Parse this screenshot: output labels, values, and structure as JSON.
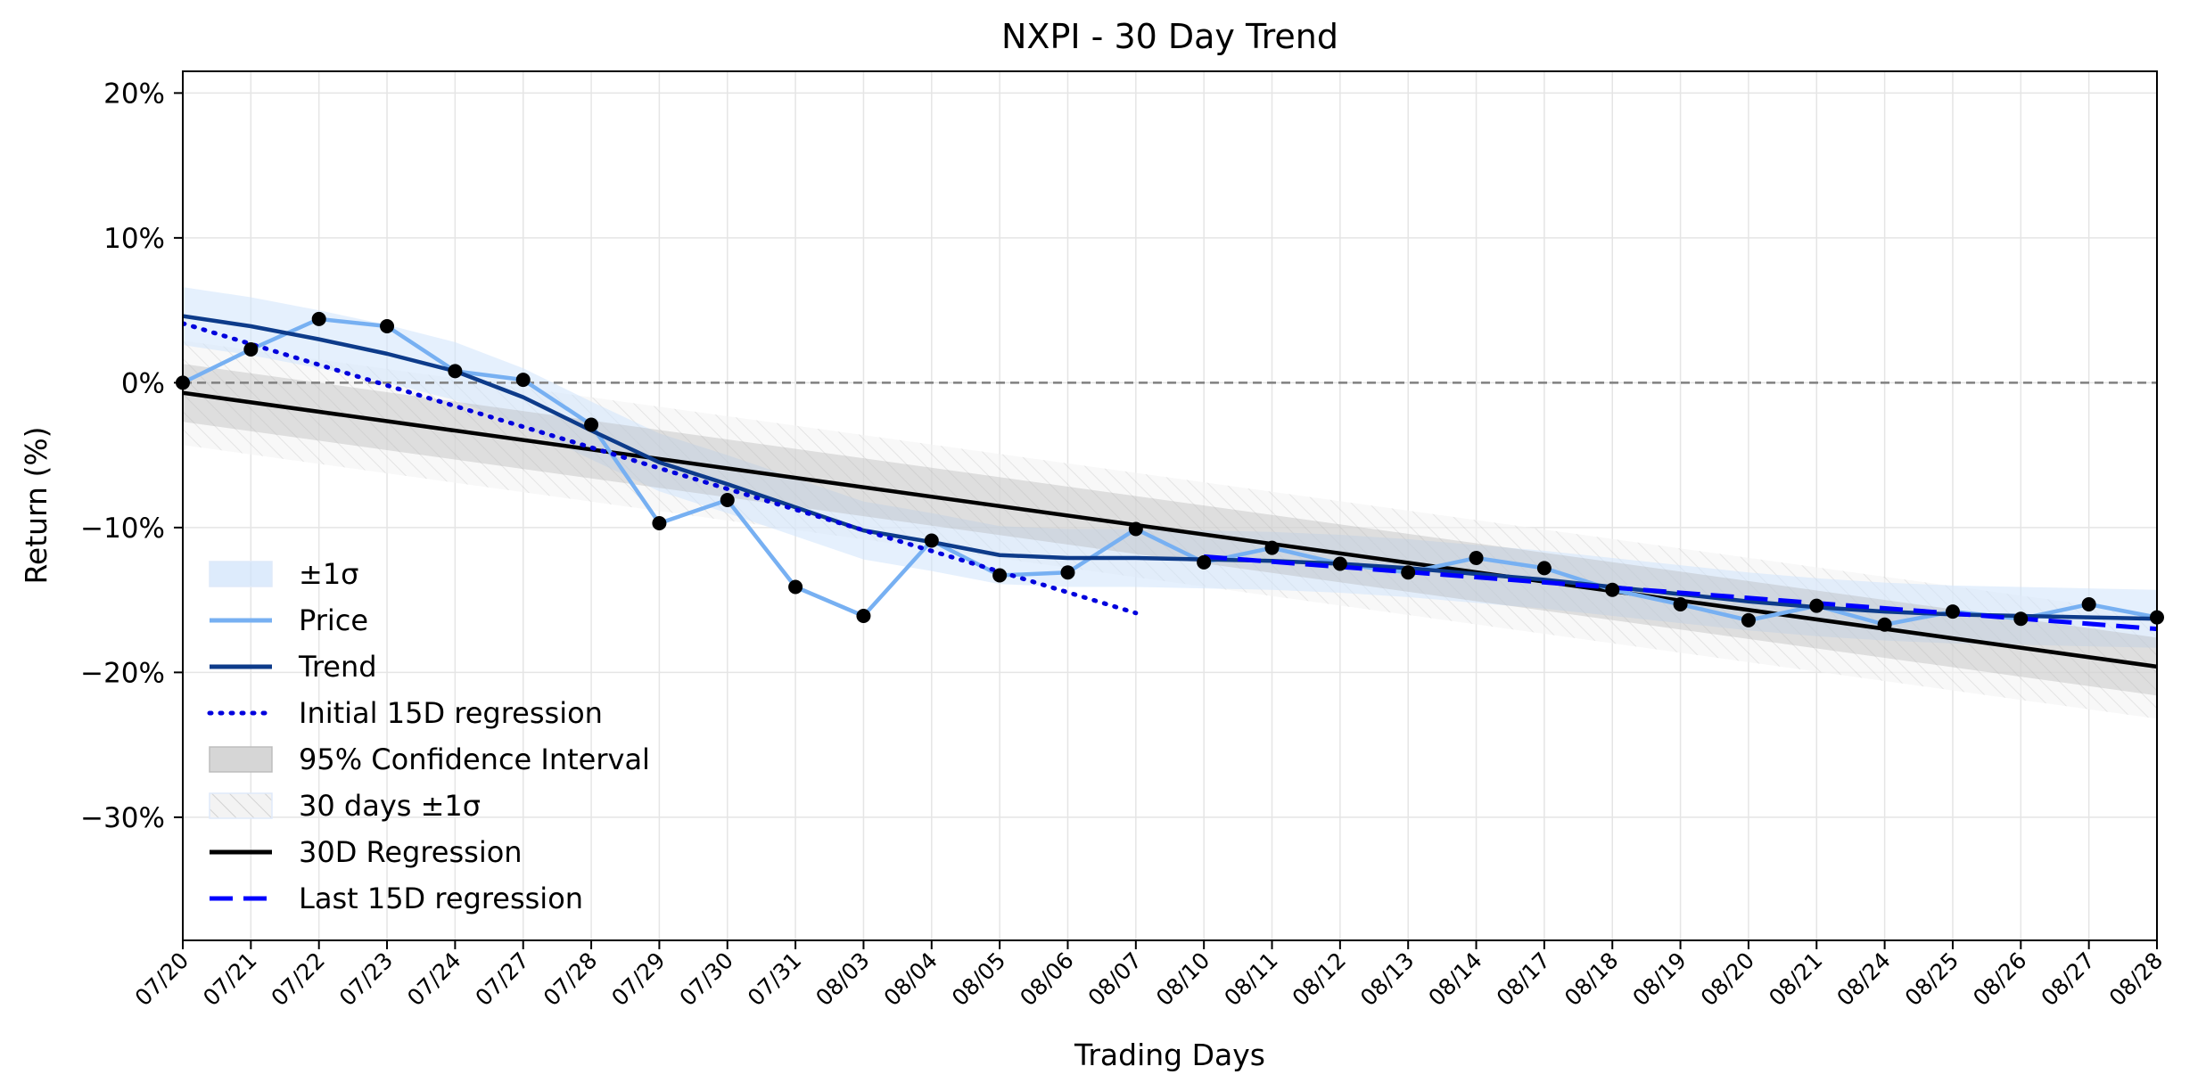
{
  "chart_data": {
    "type": "line",
    "title": "NXPI - 30 Day Trend",
    "xlabel": "Trading Days",
    "ylabel": "Return (%)",
    "ylim": [
      -38.5,
      21.5
    ],
    "grid": true,
    "legend_position": "lower-left",
    "y_ticks": [
      20,
      10,
      0,
      -10,
      -20,
      -30
    ],
    "y_tick_labels": [
      "20%",
      "10%",
      "0%",
      "−10%",
      "−20%",
      "−30%"
    ],
    "categories": [
      "07/20",
      "07/21",
      "07/22",
      "07/23",
      "07/24",
      "07/27",
      "07/28",
      "07/29",
      "07/30",
      "07/31",
      "08/03",
      "08/04",
      "08/05",
      "08/06",
      "08/07",
      "08/10",
      "08/11",
      "08/12",
      "08/13",
      "08/14",
      "08/17",
      "08/18",
      "08/19",
      "08/20",
      "08/21",
      "08/24",
      "08/25",
      "08/26",
      "08/27",
      "08/28"
    ],
    "series": [
      {
        "name": "Price",
        "kind": "line",
        "color": "#77b0f2",
        "values": [
          0.0,
          2.3,
          4.4,
          3.9,
          0.8,
          0.2,
          -2.9,
          -9.7,
          -8.1,
          -14.1,
          -16.1,
          -10.9,
          -13.3,
          -13.1,
          -10.1,
          -12.4,
          -11.4,
          -12.5,
          -13.1,
          -12.1,
          -12.8,
          -14.3,
          -15.3,
          -16.4,
          -15.4,
          -16.7,
          -15.8,
          -16.3,
          -15.3,
          -16.2
        ]
      },
      {
        "name": "Trend",
        "kind": "line",
        "color": "#0d3b8a",
        "values": [
          4.6,
          3.9,
          3.0,
          2.0,
          0.8,
          -1.0,
          -3.3,
          -5.5,
          -7.0,
          -8.6,
          -10.2,
          -11.0,
          -11.9,
          -12.1,
          -12.1,
          -12.2,
          -12.3,
          -12.5,
          -12.8,
          -13.2,
          -13.6,
          -14.1,
          -14.6,
          -15.1,
          -15.5,
          -15.8,
          -16.0,
          -16.1,
          -16.2,
          -16.3
        ]
      },
      {
        "name": "Initial 15D regression",
        "kind": "dotted",
        "color": "#0000dd",
        "x_start": 0,
        "x_end": 14,
        "y_start": 4.1,
        "y_end": -15.9
      },
      {
        "name": "30D Regression",
        "kind": "line",
        "color": "#000000",
        "x_start": 0,
        "x_end": 29,
        "y_start": -0.7,
        "y_end": -19.6
      },
      {
        "name": "Last 15D regression",
        "kind": "dashed",
        "color": "#0000ff",
        "x_start": 15,
        "x_end": 29,
        "y_start": -12.0,
        "y_end": -17.0
      }
    ],
    "bands": [
      {
        "name": "±1σ",
        "around": "Trend",
        "half_width": 2.0,
        "color": "#cfe3fb"
      },
      {
        "name": "95% Confidence Interval",
        "around": "30D Regression",
        "half_width": 2.0,
        "color": "#b0b0b0"
      },
      {
        "name": "30 days ±1σ",
        "around": "30D Regression",
        "half_width": 3.6,
        "color": "#e6e6e6"
      }
    ],
    "reference_line": {
      "y": 0,
      "color": "#808080",
      "style": "dashed"
    },
    "markers": {
      "on": "Price",
      "color": "#000000"
    },
    "legend": [
      "±1σ",
      "Price",
      "Trend",
      "Initial 15D regression",
      "95% Confidence Interval",
      "30 days ±1σ",
      "30D Regression",
      "Last 15D regression"
    ]
  }
}
